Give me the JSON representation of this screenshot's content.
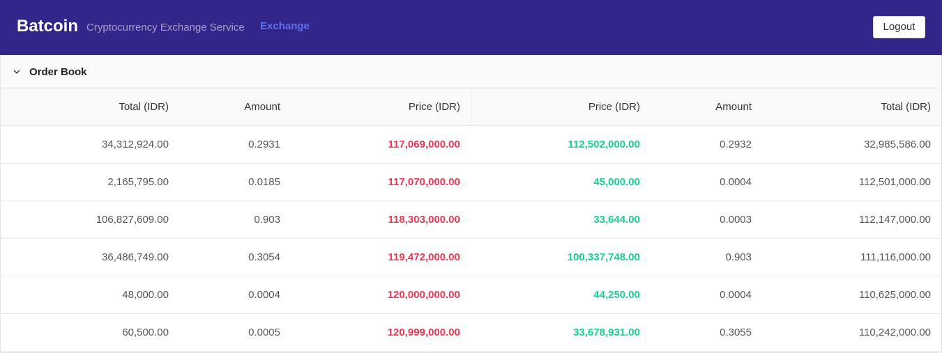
{
  "header": {
    "brand": "Batcoin",
    "tagline": "Cryptocurrency Exchange Service",
    "nav_link": "Exchange",
    "logout_label": "Logout"
  },
  "order_book": {
    "title": "Order Book",
    "columns": [
      "Total (IDR)",
      "Amount",
      "Price (IDR)",
      "Price (IDR)",
      "Amount",
      "Total (IDR)"
    ],
    "rows": [
      {
        "ask_total": "34,312,924.00",
        "ask_amount": "0.2931",
        "ask_price": "117,069,000.00",
        "bid_price": "112,502,000.00",
        "bid_amount": "0.2932",
        "bid_total": "32,985,586.00"
      },
      {
        "ask_total": "2,165,795.00",
        "ask_amount": "0.0185",
        "ask_price": "117,070,000.00",
        "bid_price": "45,000.00",
        "bid_amount": "0.0004",
        "bid_total": "112,501,000.00"
      },
      {
        "ask_total": "106,827,609.00",
        "ask_amount": "0.903",
        "ask_price": "118,303,000.00",
        "bid_price": "33,644.00",
        "bid_amount": "0.0003",
        "bid_total": "112,147,000.00"
      },
      {
        "ask_total": "36,486,749.00",
        "ask_amount": "0.3054",
        "ask_price": "119,472,000.00",
        "bid_price": "100,337,748.00",
        "bid_amount": "0.903",
        "bid_total": "111,116,000.00"
      },
      {
        "ask_total": "48,000.00",
        "ask_amount": "0.0004",
        "ask_price": "120,000,000.00",
        "bid_price": "44,250.00",
        "bid_amount": "0.0004",
        "bid_total": "110,625,000.00"
      },
      {
        "ask_total": "60,500.00",
        "ask_amount": "0.0005",
        "ask_price": "120,999,000.00",
        "bid_price": "33,678,931.00",
        "bid_amount": "0.3055",
        "bid_total": "110,242,000.00"
      }
    ]
  },
  "colors": {
    "navbar": "#33268a",
    "ask": "#f0364f",
    "bid": "#16d18f",
    "nav_link": "#5e6ff0"
  },
  "icons": {
    "collapse": "chevron-down-icon"
  }
}
